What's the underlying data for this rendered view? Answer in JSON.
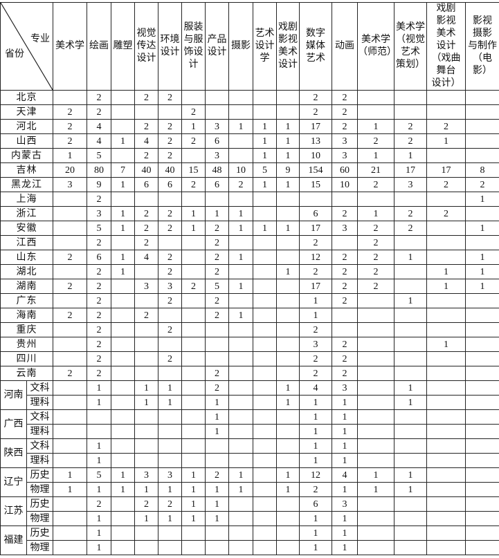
{
  "table": {
    "corner": {
      "major_label": "专业",
      "province_label": "省份"
    },
    "columns": [
      "美术学",
      "绘画",
      "雕塑",
      "视觉\n传达\n设计",
      "环境\n设计",
      "服装\n与服\n饰设\n计",
      "产品\n设计",
      "摄影",
      "艺术\n设计\n学",
      "戏剧\n影视\n美术\n设计",
      "数字\n媒体\n艺术",
      "动画",
      "美术学\n（师范）",
      "美术学\n（视觉\n艺术\n策划）",
      "戏剧\n影视\n美术\n设计\n（戏曲\n舞台\n设计）",
      "影视\n摄影\n与制作\n（电\n影）"
    ],
    "rows": [
      {
        "province": "北京",
        "values": [
          "",
          "2",
          "",
          "2",
          "2",
          "",
          "",
          "",
          "",
          "",
          "2",
          "2",
          "",
          "",
          "",
          ""
        ]
      },
      {
        "province": "天津",
        "values": [
          "2",
          "2",
          "",
          "",
          "",
          "2",
          "",
          "",
          "",
          "",
          "2",
          "2",
          "",
          "",
          "",
          ""
        ]
      },
      {
        "province": "河北",
        "values": [
          "2",
          "4",
          "",
          "2",
          "2",
          "1",
          "3",
          "1",
          "1",
          "1",
          "17",
          "2",
          "1",
          "2",
          "2",
          ""
        ]
      },
      {
        "province": "山西",
        "values": [
          "2",
          "4",
          "1",
          "4",
          "2",
          "2",
          "6",
          "",
          "1",
          "1",
          "13",
          "3",
          "2",
          "2",
          "1",
          ""
        ]
      },
      {
        "province": "内蒙古",
        "values": [
          "1",
          "5",
          "",
          "2",
          "2",
          "",
          "3",
          "",
          "1",
          "1",
          "10",
          "3",
          "1",
          "1",
          "",
          ""
        ]
      },
      {
        "province": "吉林",
        "values": [
          "20",
          "80",
          "7",
          "40",
          "40",
          "15",
          "48",
          "10",
          "5",
          "9",
          "154",
          "60",
          "21",
          "17",
          "17",
          "8"
        ]
      },
      {
        "province": "黑龙江",
        "values": [
          "3",
          "9",
          "1",
          "6",
          "6",
          "2",
          "6",
          "2",
          "1",
          "1",
          "15",
          "10",
          "2",
          "3",
          "2",
          "2"
        ]
      },
      {
        "province": "上海",
        "values": [
          "",
          "2",
          "",
          "",
          "",
          "",
          "",
          "",
          "",
          "",
          "",
          "",
          "",
          "",
          "",
          "1"
        ]
      },
      {
        "province": "浙江",
        "values": [
          "",
          "3",
          "1",
          "2",
          "2",
          "1",
          "1",
          "1",
          "",
          "",
          "6",
          "2",
          "1",
          "2",
          "2",
          ""
        ]
      },
      {
        "province": "安徽",
        "values": [
          "",
          "5",
          "1",
          "2",
          "2",
          "1",
          "2",
          "1",
          "1",
          "1",
          "17",
          "3",
          "2",
          "2",
          "",
          "1"
        ]
      },
      {
        "province": "江西",
        "values": [
          "",
          "2",
          "",
          "2",
          "",
          "",
          "2",
          "",
          "",
          "",
          "2",
          "",
          "2",
          "",
          "",
          ""
        ]
      },
      {
        "province": "山东",
        "values": [
          "2",
          "6",
          "1",
          "4",
          "2",
          "",
          "2",
          "1",
          "",
          "",
          "12",
          "2",
          "2",
          "1",
          "",
          "1"
        ]
      },
      {
        "province": "湖北",
        "values": [
          "",
          "2",
          "1",
          "",
          "2",
          "",
          "2",
          "",
          "",
          "1",
          "2",
          "2",
          "2",
          "",
          "1",
          "1"
        ]
      },
      {
        "province": "湖南",
        "values": [
          "2",
          "2",
          "",
          "3",
          "3",
          "2",
          "5",
          "1",
          "",
          "",
          "17",
          "2",
          "2",
          "",
          "1",
          "1"
        ]
      },
      {
        "province": "广东",
        "values": [
          "",
          "2",
          "",
          "",
          "2",
          "",
          "2",
          "",
          "",
          "",
          "1",
          "2",
          "",
          "1",
          "",
          ""
        ]
      },
      {
        "province": "海南",
        "values": [
          "2",
          "2",
          "",
          "2",
          "",
          "",
          "2",
          "1",
          "",
          "",
          "1",
          "",
          "",
          "",
          "",
          ""
        ]
      },
      {
        "province": "重庆",
        "values": [
          "",
          "2",
          "",
          "",
          "2",
          "",
          "",
          "",
          "",
          "",
          "2",
          "",
          "",
          "",
          "",
          ""
        ]
      },
      {
        "province": "贵州",
        "values": [
          "",
          "2",
          "",
          "",
          "",
          "",
          "",
          "",
          "",
          "",
          "3",
          "2",
          "",
          "",
          "1",
          ""
        ]
      },
      {
        "province": "四川",
        "values": [
          "",
          "2",
          "",
          "",
          "2",
          "",
          "",
          "",
          "",
          "",
          "2",
          "2",
          "",
          "",
          "",
          ""
        ]
      },
      {
        "province": "云南",
        "values": [
          "2",
          "2",
          "",
          "",
          "",
          "",
          "2",
          "",
          "",
          "",
          "2",
          "2",
          "",
          "",
          "",
          ""
        ]
      },
      {
        "province": "河南",
        "sub": "文科",
        "values": [
          "",
          "1",
          "",
          "1",
          "1",
          "",
          "2",
          "",
          "",
          "1",
          "4",
          "3",
          "",
          "1",
          "",
          ""
        ]
      },
      {
        "province": "河南",
        "sub": "理科",
        "values": [
          "",
          "1",
          "",
          "1",
          "1",
          "",
          "1",
          "",
          "",
          "1",
          "1",
          "1",
          "",
          "1",
          "",
          ""
        ]
      },
      {
        "province": "广西",
        "sub": "文科",
        "values": [
          "",
          "",
          "",
          "",
          "",
          "",
          "1",
          "",
          "",
          "",
          "1",
          "1",
          "",
          "",
          "",
          ""
        ]
      },
      {
        "province": "广西",
        "sub": "理科",
        "values": [
          "",
          "",
          "",
          "",
          "",
          "",
          "1",
          "",
          "",
          "",
          "1",
          "1",
          "",
          "",
          "",
          ""
        ]
      },
      {
        "province": "陕西",
        "sub": "文科",
        "values": [
          "",
          "1",
          "",
          "",
          "",
          "",
          "",
          "",
          "",
          "",
          "1",
          "1",
          "",
          "",
          "",
          ""
        ]
      },
      {
        "province": "陕西",
        "sub": "理科",
        "values": [
          "",
          "1",
          "",
          "",
          "",
          "",
          "",
          "",
          "",
          "",
          "1",
          "1",
          "",
          "",
          "",
          ""
        ]
      },
      {
        "province": "辽宁",
        "sub": "历史",
        "values": [
          "1",
          "5",
          "1",
          "3",
          "3",
          "1",
          "2",
          "1",
          "",
          "1",
          "12",
          "4",
          "1",
          "1",
          "",
          ""
        ]
      },
      {
        "province": "辽宁",
        "sub": "物理",
        "values": [
          "1",
          "1",
          "1",
          "1",
          "1",
          "1",
          "1",
          "1",
          "",
          "1",
          "2",
          "1",
          "1",
          "1",
          "",
          ""
        ]
      },
      {
        "province": "江苏",
        "sub": "历史",
        "values": [
          "",
          "2",
          "",
          "2",
          "2",
          "1",
          "1",
          "",
          "",
          "",
          "6",
          "3",
          "",
          "",
          "",
          ""
        ]
      },
      {
        "province": "江苏",
        "sub": "物理",
        "values": [
          "",
          "1",
          "",
          "1",
          "1",
          "1",
          "1",
          "",
          "",
          "",
          "1",
          "1",
          "",
          "",
          "",
          ""
        ]
      },
      {
        "province": "福建",
        "sub": "历史",
        "values": [
          "",
          "1",
          "",
          "",
          "",
          "",
          "",
          "",
          "",
          "",
          "1",
          "1",
          "",
          "",
          "",
          ""
        ]
      },
      {
        "province": "福建",
        "sub": "物理",
        "values": [
          "",
          "1",
          "",
          "",
          "",
          "",
          "",
          "",
          "",
          "",
          "1",
          "1",
          "",
          "",
          "",
          ""
        ]
      }
    ]
  }
}
